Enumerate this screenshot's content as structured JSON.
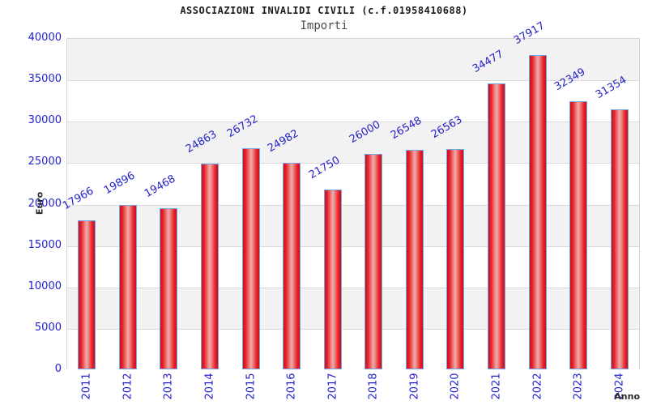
{
  "chart_data": {
    "type": "bar",
    "title": "ASSOCIAZIONI INVALIDI CIVILI (c.f.01958410688)",
    "subtitle": "Importi",
    "xlabel": "Anno",
    "ylabel": "Euro",
    "categories": [
      "2011",
      "2012",
      "2013",
      "2014",
      "2015",
      "2016",
      "2017",
      "2018",
      "2019",
      "2020",
      "2021",
      "2022",
      "2023",
      "2024"
    ],
    "values": [
      17966,
      19896,
      19468,
      24863,
      26732,
      24982,
      21750,
      26000,
      26548,
      26563,
      34477,
      37917,
      32349,
      31354
    ],
    "ylim": [
      0,
      40000
    ],
    "ytick_step": 5000,
    "ytick_labels": [
      "0",
      "5000",
      "10000",
      "15000",
      "20000",
      "25000",
      "30000",
      "35000",
      "40000"
    ],
    "grid": "horizontal-bands",
    "legend": false,
    "bar_label_rotation_deg": -30,
    "colors": {
      "bar_edge_red": "#c4151c",
      "bar_body_red": "#e91c24",
      "bar_highlight_pink": "#efb0ad",
      "bar_border_blue": "#74a7e8",
      "axis_tick_blue": "#2222cc",
      "value_label_blue": "#2424c8",
      "band_gray": "#f2f2f2",
      "band_white": "#ffffff",
      "grid_line": "#d9d9d9",
      "axis_title_dark": "#2b2b2b"
    }
  }
}
